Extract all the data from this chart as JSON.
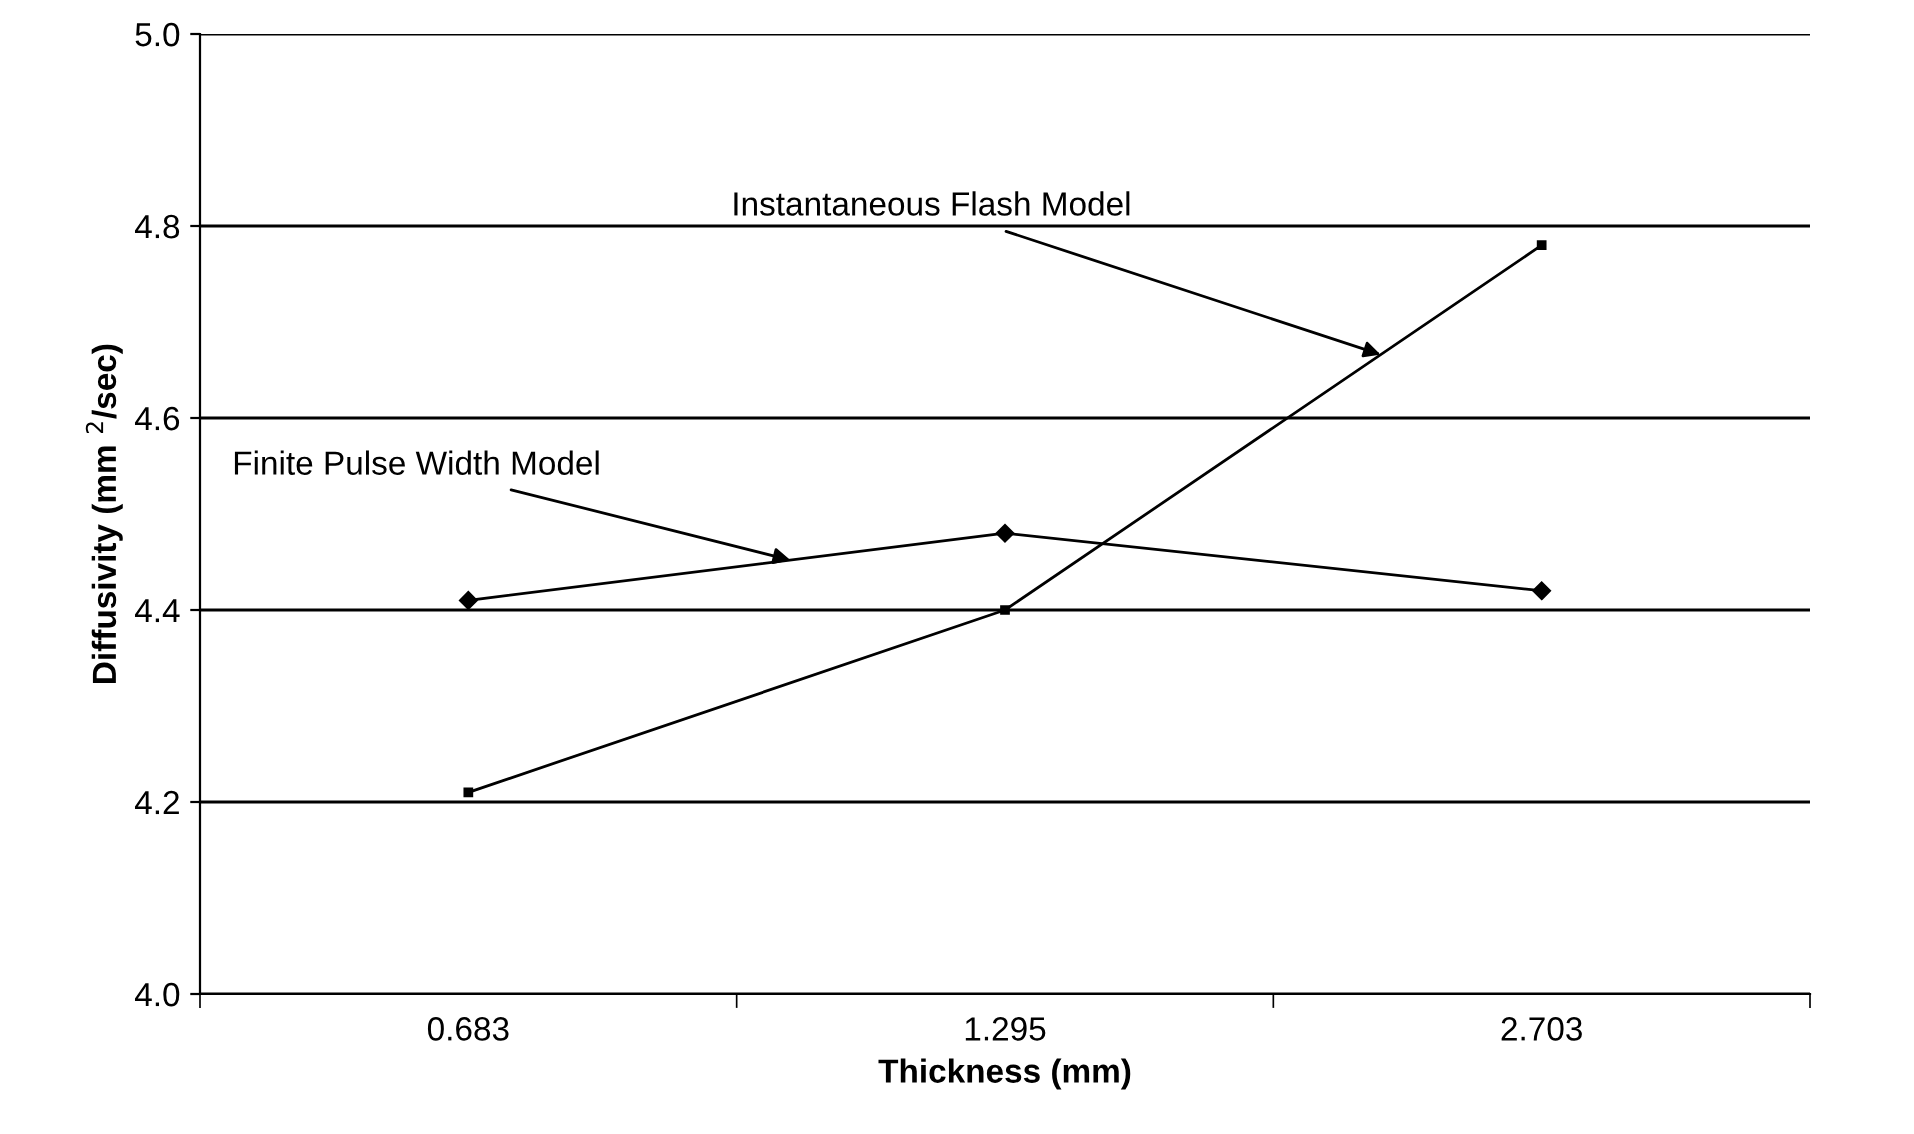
{
  "chart_data": {
    "type": "line",
    "xlabel": "Thickness (mm)",
    "ylabel": "Diffusivity (mm $^{2}$/sec)",
    "categories": [
      "0.683",
      "1.295",
      "2.703"
    ],
    "series": [
      {
        "name": "Finite Pulse Width Model",
        "color": "#000000",
        "marker": "diamond",
        "values": [
          4.41,
          4.48,
          4.42
        ]
      },
      {
        "name": "Instantaneous Flash Model",
        "color": "#000000",
        "marker": "square",
        "values": [
          4.21,
          4.4,
          4.78
        ]
      }
    ],
    "ylim": [
      4.0,
      5.0
    ],
    "yticks": [
      {
        "value": 4.0,
        "label": "4.0"
      },
      {
        "value": 4.2,
        "label": "4.2"
      },
      {
        "value": 4.4,
        "label": "4.4"
      },
      {
        "value": 4.6,
        "label": "4.6"
      },
      {
        "value": 4.8,
        "label": "4.8"
      },
      {
        "value": 5.0,
        "label": "5.0"
      }
    ],
    "grid": "y",
    "legend": false
  }
}
